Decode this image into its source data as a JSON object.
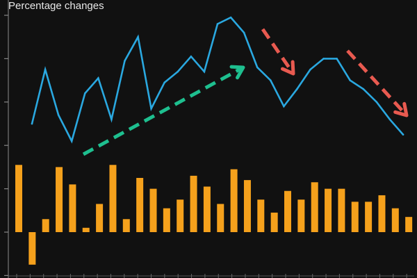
{
  "chart_data": {
    "type": "bar",
    "title": "Percentage changes",
    "xlabel": "",
    "ylabel": "",
    "grid": false,
    "legend": "none",
    "background_color": "#111111",
    "bar_color": "#f5a11c",
    "line_color": "#2aa8e0",
    "arrow_up_color": "#1ebf8f",
    "arrow_down_color": "#e85a50",
    "series": [
      {
        "type": "bar",
        "values": [
          3.1,
          -1.5,
          0.6,
          3.0,
          2.2,
          0.2,
          1.3,
          3.1,
          0.6,
          2.5,
          2.0,
          1.1,
          1.5,
          2.6,
          2.1,
          1.3,
          2.9,
          2.4,
          1.5,
          0.9,
          1.9,
          1.5,
          2.3,
          2.0,
          2.0,
          1.4,
          1.4,
          1.7,
          1.1,
          0.7,
          0.9
        ]
      },
      {
        "type": "line",
        "values": [
          5.0,
          7.5,
          5.4,
          4.2,
          6.4,
          7.1,
          5.2,
          7.9,
          9.0,
          5.7,
          6.9,
          7.4,
          8.1,
          7.4,
          9.6,
          9.9,
          9.2,
          7.6,
          7.0,
          5.8,
          6.6,
          7.5,
          8.0,
          8.0,
          7.0,
          6.6,
          6.0,
          5.2,
          4.5
        ]
      }
    ],
    "ylim": [
      -2,
      10.6
    ]
  }
}
